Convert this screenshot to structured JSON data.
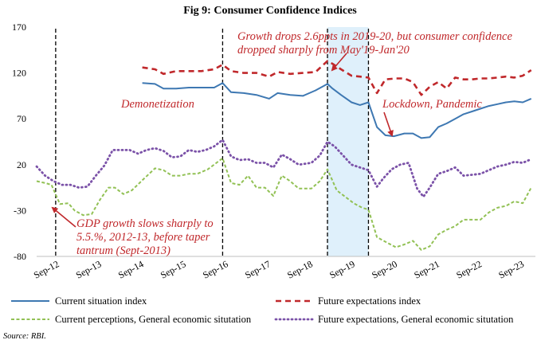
{
  "chart_data": {
    "type": "line",
    "title": "Fig 9: Consumer Confidence Indices",
    "ylim": [
      -80,
      170
    ],
    "yticks": [
      -80,
      -30,
      20,
      70,
      120,
      170
    ],
    "xlim": [
      0,
      11.8
    ],
    "xticks": [
      {
        "label": "Sep-12",
        "x": 0
      },
      {
        "label": "Sep-13",
        "x": 1
      },
      {
        "label": "Sep-14",
        "x": 2
      },
      {
        "label": "Sep-15",
        "x": 3
      },
      {
        "label": "Sep-16",
        "x": 4
      },
      {
        "label": "Sep-17",
        "x": 5
      },
      {
        "label": "Sep-18",
        "x": 6
      },
      {
        "label": "Sep-19",
        "x": 7
      },
      {
        "label": "Sep-20",
        "x": 8
      },
      {
        "label": "Sep-21",
        "x": 9
      },
      {
        "label": "Sep-22",
        "x": 10
      },
      {
        "label": "Sep-23",
        "x": 11
      }
    ],
    "grid": false,
    "legend_position": "bottom",
    "vlines": [
      0.45,
      4.4,
      6.88,
      7.85
    ],
    "shaded_region": [
      6.88,
      7.85
    ],
    "series": [
      {
        "name": "Current situation index",
        "color": "#3e78b2",
        "style": "solid",
        "points": [
          [
            2.5,
            109
          ],
          [
            2.8,
            108
          ],
          [
            3,
            103
          ],
          [
            3.3,
            103
          ],
          [
            3.6,
            104
          ],
          [
            3.9,
            104
          ],
          [
            4.2,
            104
          ],
          [
            4.4,
            109
          ],
          [
            4.6,
            99
          ],
          [
            4.9,
            98
          ],
          [
            5.2,
            96
          ],
          [
            5.5,
            92
          ],
          [
            5.7,
            98
          ],
          [
            6,
            96
          ],
          [
            6.3,
            95
          ],
          [
            6.6,
            101
          ],
          [
            6.88,
            108
          ],
          [
            7,
            103
          ],
          [
            7.2,
            96
          ],
          [
            7.45,
            88
          ],
          [
            7.65,
            85
          ],
          [
            7.85,
            88
          ],
          [
            8.05,
            61
          ],
          [
            8.25,
            52
          ],
          [
            8.45,
            51
          ],
          [
            8.7,
            54
          ],
          [
            8.9,
            54
          ],
          [
            9.1,
            49
          ],
          [
            9.3,
            50
          ],
          [
            9.5,
            61
          ],
          [
            9.7,
            65
          ],
          [
            9.9,
            70
          ],
          [
            10.1,
            75
          ],
          [
            10.3,
            78
          ],
          [
            10.5,
            81
          ],
          [
            10.7,
            84
          ],
          [
            10.9,
            86
          ],
          [
            11.1,
            88
          ],
          [
            11.3,
            89
          ],
          [
            11.5,
            88
          ],
          [
            11.7,
            92
          ]
        ]
      },
      {
        "name": "Future expectations index",
        "color": "#c0282b",
        "style": "dashed",
        "points": [
          [
            2.5,
            126
          ],
          [
            2.8,
            124
          ],
          [
            3,
            119
          ],
          [
            3.3,
            122
          ],
          [
            3.6,
            122
          ],
          [
            3.9,
            122
          ],
          [
            4.2,
            124
          ],
          [
            4.4,
            129
          ],
          [
            4.6,
            122
          ],
          [
            4.9,
            120
          ],
          [
            5.2,
            120
          ],
          [
            5.5,
            116
          ],
          [
            5.7,
            121
          ],
          [
            6,
            119
          ],
          [
            6.3,
            120
          ],
          [
            6.6,
            121
          ],
          [
            6.88,
            133
          ],
          [
            7,
            130
          ],
          [
            7.2,
            124
          ],
          [
            7.45,
            117
          ],
          [
            7.65,
            116
          ],
          [
            7.85,
            115
          ],
          [
            8.05,
            98
          ],
          [
            8.25,
            113
          ],
          [
            8.5,
            114
          ],
          [
            8.7,
            114
          ],
          [
            8.9,
            110
          ],
          [
            9.1,
            96
          ],
          [
            9.3,
            105
          ],
          [
            9.5,
            110
          ],
          [
            9.7,
            103
          ],
          [
            9.9,
            115
          ],
          [
            10.1,
            113
          ],
          [
            10.3,
            113
          ],
          [
            10.5,
            114
          ],
          [
            10.7,
            114
          ],
          [
            10.9,
            115
          ],
          [
            11.1,
            116
          ],
          [
            11.3,
            115
          ],
          [
            11.5,
            117
          ],
          [
            11.7,
            123
          ]
        ]
      },
      {
        "name": "Current perceptions, General economic situtation",
        "color": "#92c155",
        "style": "solid",
        "points": [
          [
            0,
            2
          ],
          [
            0.2,
            0
          ],
          [
            0.35,
            -2
          ],
          [
            0.55,
            -23
          ],
          [
            0.75,
            -22
          ],
          [
            0.9,
            -30
          ],
          [
            1.1,
            -35
          ],
          [
            1.3,
            -34
          ],
          [
            1.5,
            -18
          ],
          [
            1.7,
            -5
          ],
          [
            1.85,
            -5
          ],
          [
            2.05,
            -12
          ],
          [
            2.25,
            -8
          ],
          [
            2.5,
            3
          ],
          [
            2.8,
            16
          ],
          [
            3,
            14
          ],
          [
            3.2,
            8
          ],
          [
            3.4,
            8
          ],
          [
            3.6,
            10
          ],
          [
            3.8,
            10
          ],
          [
            4.05,
            15
          ],
          [
            4.4,
            27
          ],
          [
            4.6,
            0
          ],
          [
            4.8,
            -2
          ],
          [
            5,
            8
          ],
          [
            5.2,
            -5
          ],
          [
            5.4,
            -5
          ],
          [
            5.6,
            -14
          ],
          [
            5.8,
            8
          ],
          [
            6,
            2
          ],
          [
            6.2,
            -6
          ],
          [
            6.5,
            -6
          ],
          [
            6.7,
            2
          ],
          [
            6.88,
            15
          ],
          [
            7.1,
            -8
          ],
          [
            7.3,
            -15
          ],
          [
            7.5,
            -22
          ],
          [
            7.7,
            -27
          ],
          [
            7.85,
            -29
          ],
          [
            8.05,
            -59
          ],
          [
            8.25,
            -64
          ],
          [
            8.5,
            -70
          ],
          [
            8.7,
            -67
          ],
          [
            8.9,
            -63
          ],
          [
            9.1,
            -73
          ],
          [
            9.3,
            -69
          ],
          [
            9.5,
            -56
          ],
          [
            9.7,
            -51
          ],
          [
            9.9,
            -47
          ],
          [
            10.1,
            -40
          ],
          [
            10.3,
            -40
          ],
          [
            10.5,
            -40
          ],
          [
            10.7,
            -32
          ],
          [
            10.9,
            -27
          ],
          [
            11.1,
            -25
          ],
          [
            11.3,
            -20
          ],
          [
            11.5,
            -22
          ],
          [
            11.7,
            -5
          ]
        ]
      },
      {
        "name": "Future expectations, General economic situtation",
        "color": "#7b52a8",
        "style": "dotted",
        "points": [
          [
            0,
            18
          ],
          [
            0.2,
            8
          ],
          [
            0.4,
            2
          ],
          [
            0.6,
            -2
          ],
          [
            0.8,
            -2
          ],
          [
            1,
            -5
          ],
          [
            1.2,
            -4
          ],
          [
            1.4,
            8
          ],
          [
            1.6,
            19
          ],
          [
            1.8,
            36
          ],
          [
            2,
            36
          ],
          [
            2.2,
            36
          ],
          [
            2.4,
            32
          ],
          [
            2.6,
            36
          ],
          [
            2.8,
            38
          ],
          [
            3,
            35
          ],
          [
            3.2,
            28
          ],
          [
            3.4,
            29
          ],
          [
            3.6,
            36
          ],
          [
            3.8,
            34
          ],
          [
            4,
            36
          ],
          [
            4.2,
            40
          ],
          [
            4.4,
            47
          ],
          [
            4.6,
            29
          ],
          [
            4.8,
            25
          ],
          [
            5,
            26
          ],
          [
            5.2,
            22
          ],
          [
            5.4,
            22
          ],
          [
            5.6,
            17
          ],
          [
            5.8,
            31
          ],
          [
            6,
            26
          ],
          [
            6.2,
            20
          ],
          [
            6.5,
            22
          ],
          [
            6.7,
            30
          ],
          [
            6.88,
            45
          ],
          [
            7.05,
            40
          ],
          [
            7.25,
            30
          ],
          [
            7.45,
            20
          ],
          [
            7.65,
            17
          ],
          [
            7.85,
            14
          ],
          [
            8.05,
            -4
          ],
          [
            8.2,
            5
          ],
          [
            8.4,
            15
          ],
          [
            8.6,
            20
          ],
          [
            8.8,
            22
          ],
          [
            9,
            -6
          ],
          [
            9.15,
            -15
          ],
          [
            9.3,
            -5
          ],
          [
            9.5,
            10
          ],
          [
            9.7,
            13
          ],
          [
            9.9,
            17
          ],
          [
            10.1,
            8
          ],
          [
            10.3,
            9
          ],
          [
            10.5,
            10
          ],
          [
            10.7,
            14
          ],
          [
            10.9,
            18
          ],
          [
            11.1,
            20
          ],
          [
            11.3,
            23
          ],
          [
            11.5,
            22
          ],
          [
            11.7,
            26
          ]
        ]
      }
    ],
    "annotations": {
      "demonetization": "Demonetization",
      "growth_drop_line1": "Growth drops 2.6ppts in 2019-20, but consumer confidence",
      "growth_drop_line2": "dropped sharply from May'19-Jan'20",
      "lockdown": "Lockdown, Pandemic",
      "gdp_line1": "GDP growth slows sharply to",
      "gdp_line2": "5.5.%, 2012-13, before taper",
      "gdp_line3": "tantrum (Sept-2013)"
    }
  },
  "source": "Source: RBI."
}
